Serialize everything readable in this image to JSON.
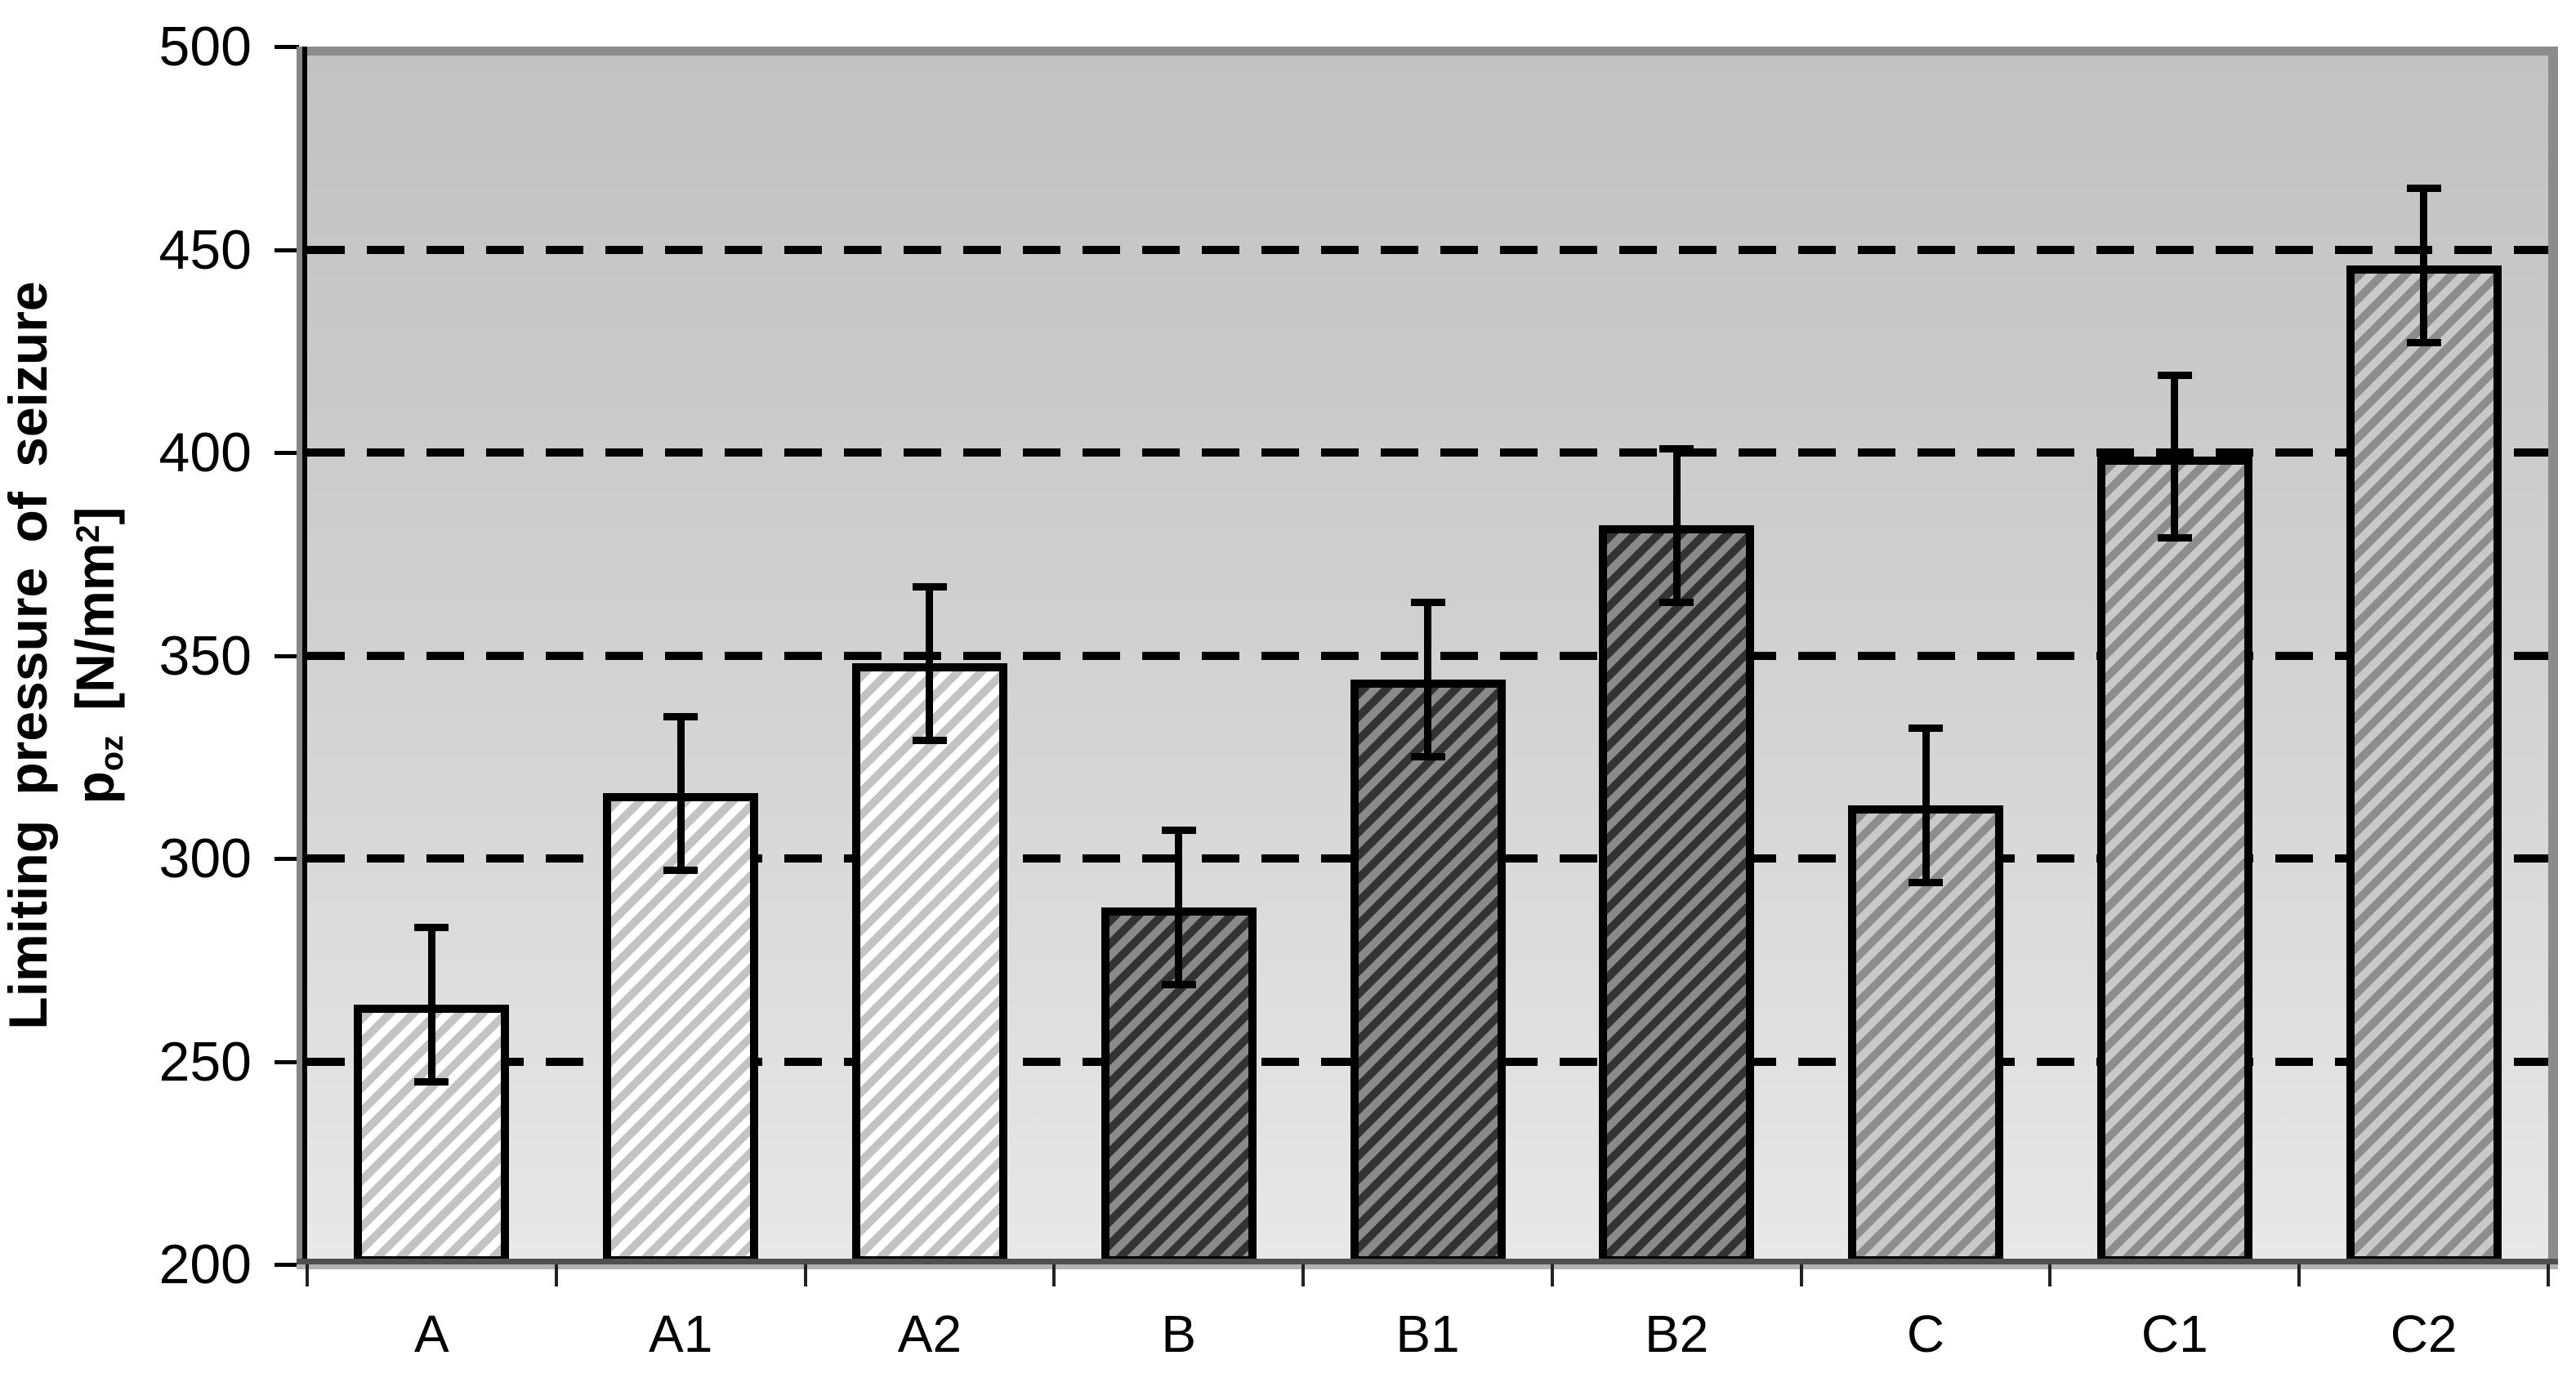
{
  "chart_data": {
    "type": "bar",
    "categories": [
      "A",
      "A1",
      "A2",
      "B",
      "B1",
      "B2",
      "C",
      "C1",
      "C2"
    ],
    "values": [
      264,
      316,
      348,
      288,
      344,
      382,
      313,
      399,
      446
    ],
    "error_bars": [
      19,
      19,
      19,
      19,
      19,
      19,
      19,
      20,
      19
    ],
    "ylim": [
      200,
      500
    ],
    "ytick_step": 50,
    "gridlines_at": [
      250,
      300,
      350,
      400,
      450
    ],
    "grid_style": "dashed-horizontal-black",
    "legend": "none",
    "title": "",
    "xlabel": "",
    "ylabel": "Limiting pressure of seizure p_oz [N/mm2]",
    "pattern_note": "diagonal hatch fills; group A light, group B dark, group C medium gray"
  },
  "y_axis": {
    "title_line1": "Limiting pressure of seizure",
    "title_symbol": "p",
    "title_symbol_sub": "oz",
    "title_unit_open": " [N/mm",
    "title_unit_sup": "2",
    "title_unit_close": "]",
    "tick_labels": [
      "500",
      "450",
      "400",
      "350",
      "300",
      "250",
      "200"
    ],
    "tick_values": [
      500,
      450,
      400,
      350,
      300,
      250,
      200
    ]
  },
  "x_axis": {
    "categories": [
      "A",
      "A1",
      "A2",
      "B",
      "B1",
      "B2",
      "C",
      "C1",
      "C2"
    ]
  },
  "colors": {
    "plot_bg_top": "#c2c2c2",
    "plot_bg_bottom": "#e8e8e8",
    "bar_border": "#000000",
    "gridline": "#000000",
    "axis_trim_gray": "#8c8c8c",
    "group_A": {
      "bg": "#ffffff",
      "stripe": "#c3c3c3"
    },
    "group_B": {
      "bg": "#8a8a8a",
      "stripe": "#333333"
    },
    "group_C": {
      "bg": "#c9c9c9",
      "stripe": "#8d8d8d"
    }
  }
}
